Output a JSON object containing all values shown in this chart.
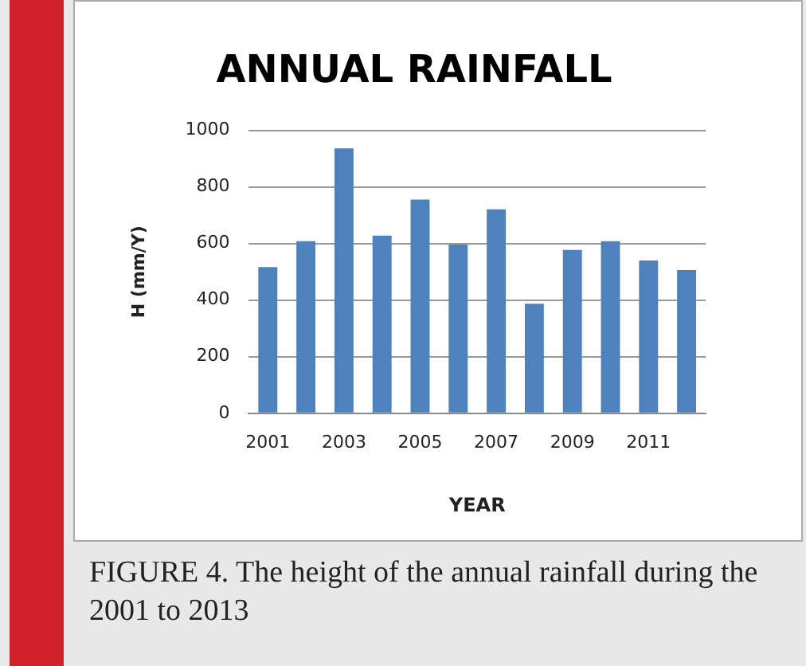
{
  "chart_data": {
    "type": "bar",
    "title": "ANNUAL RAINFALL",
    "xlabel": "YEAR",
    "ylabel": "H (mm/Y)",
    "categories": [
      "2001",
      null,
      "2003",
      null,
      "2005",
      null,
      "2007",
      null,
      "2009",
      null,
      "2011",
      null
    ],
    "values": [
      517,
      608,
      936,
      628,
      755,
      596,
      721,
      387,
      577,
      608,
      540,
      506
    ],
    "color": "#4f81bd",
    "ylim": [
      0,
      1000
    ],
    "yticks": [
      0,
      200,
      400,
      600,
      800,
      1000
    ],
    "grid": "y",
    "legend": false,
    "annotations": [
      "FIGURE 4. The height of the annual rainfall during the 2001 to 2013"
    ]
  }
}
